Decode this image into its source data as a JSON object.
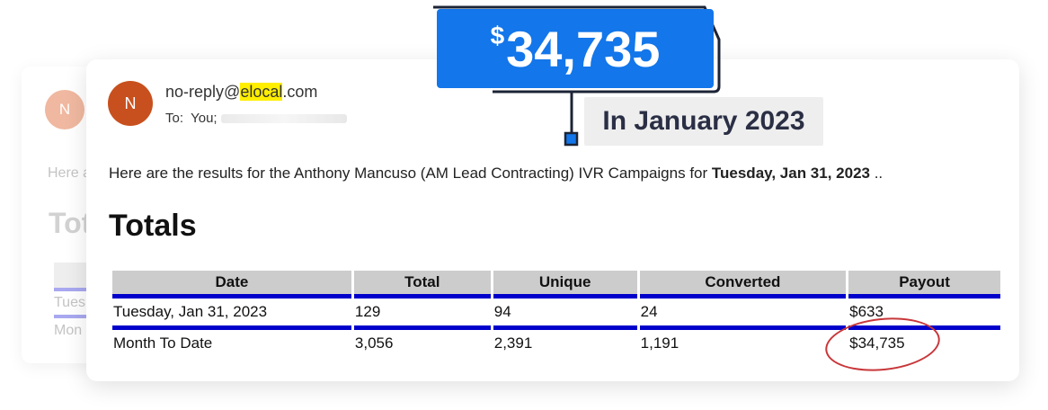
{
  "callout": {
    "currency": "$",
    "amount": "34,735",
    "subtitle": "In January 2023"
  },
  "background_card": {
    "avatar_initial": "N",
    "intro_fragment": "Here a",
    "heading_fragment": "Tot",
    "row1_fragment": "Tues",
    "row2_fragment": "Mon"
  },
  "email": {
    "avatar_initial": "N",
    "from_prefix": "no-reply@",
    "from_highlight": "elocal",
    "from_suffix": ".com",
    "to_label": "To:",
    "to_value": "You;",
    "intro_text": "Here are the results for the Anthony Mancuso (AM Lead Contracting) IVR Campaigns for ",
    "intro_date": "Tuesday, Jan 31, 2023",
    "intro_tail": " ..",
    "totals_heading": "Totals"
  },
  "table": {
    "headers": [
      "Date",
      "Total",
      "Unique",
      "Converted",
      "Payout"
    ],
    "rows": [
      [
        "Tuesday, Jan 31, 2023",
        "129",
        "94",
        "24",
        "$633"
      ],
      [
        "Month To Date",
        "3,056",
        "2,391",
        "1,191",
        "$34,735"
      ]
    ]
  },
  "colors": {
    "callout_blue": "#1376ea",
    "table_rule_blue": "#0000cc",
    "highlight_yellow": "#ffee00",
    "avatar_orange": "#c8501e",
    "circle_red": "#c8373a"
  }
}
